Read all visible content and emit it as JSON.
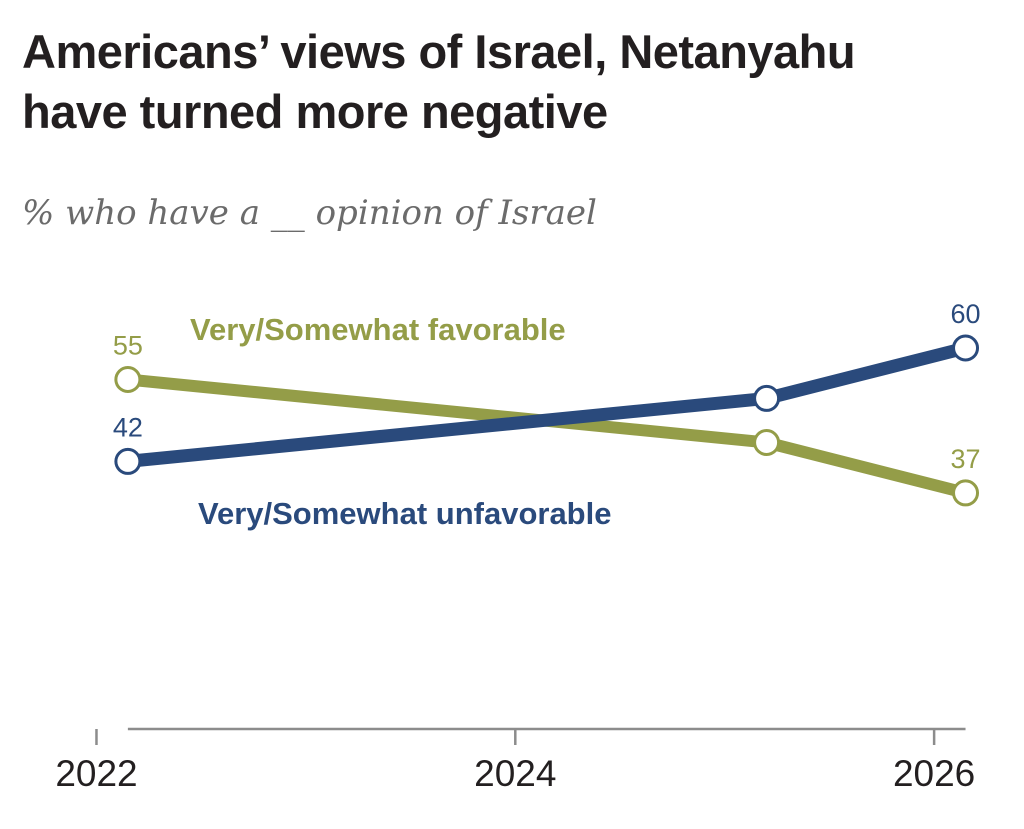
{
  "chart_data": {
    "type": "line",
    "title": [
      "Americans’ views of Israel, Netanyahu",
      "have turned more negative"
    ],
    "subtitle": "% who have a __ opinion of Israel",
    "xlabel": "",
    "ylabel": "",
    "x_ticks": [
      "2022",
      "2024",
      "2026"
    ],
    "x_tick_values": [
      2022,
      2024,
      2026
    ],
    "xlim": [
      2021.95,
      2026.2
    ],
    "ylim": [
      0,
      100
    ],
    "series": [
      {
        "name": "Very/Somewhat favorable",
        "color": "#949d48",
        "x": [
          2022.15,
          2025.2,
          2026.15
        ],
        "values": [
          55,
          45,
          37
        ],
        "labels": [
          "55",
          null,
          "37"
        ]
      },
      {
        "name": "Very/Somewhat unfavorable",
        "color": "#2a4a7c",
        "x": [
          2022.15,
          2025.2,
          2026.15
        ],
        "values": [
          42,
          52,
          60
        ],
        "labels": [
          "42",
          null,
          "60"
        ]
      }
    ]
  }
}
